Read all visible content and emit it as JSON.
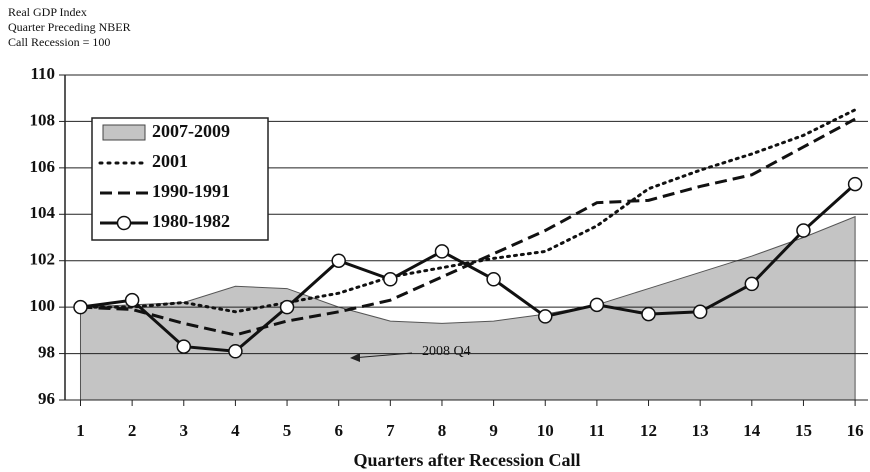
{
  "chart_data": {
    "type": "line",
    "title_lines": [
      "Real GDP Index",
      "Quarter Preceding NBER",
      "Call Recession = 100"
    ],
    "x_label": "Quarters after Recession Call",
    "annotation": "2008 Q4",
    "x": [
      1,
      2,
      3,
      4,
      5,
      6,
      7,
      8,
      9,
      10,
      11,
      12,
      13,
      14,
      15,
      16
    ],
    "xlim": [
      0.7,
      16.25
    ],
    "xticks": [
      1,
      2,
      3,
      4,
      5,
      6,
      7,
      8,
      9,
      10,
      11,
      12,
      13,
      14,
      15,
      16
    ],
    "ylim": [
      96,
      110
    ],
    "yticks": [
      96,
      98,
      100,
      102,
      104,
      106,
      108,
      110
    ],
    "grid": true,
    "series": [
      {
        "name": "2007-2009",
        "style": "area",
        "color": "#c4c4c4",
        "values": [
          100,
          100.1,
          100.2,
          100.9,
          100.8,
          100,
          99.4,
          99.3,
          99.4,
          99.7,
          100.1,
          100.8,
          101.5,
          102.2,
          103,
          103.9
        ]
      },
      {
        "name": "2001",
        "style": "dotted",
        "color": "#111111",
        "values": [
          100,
          100,
          100.2,
          99.8,
          100.2,
          100.6,
          101.3,
          101.7,
          102.1,
          102.4,
          103.5,
          105.1,
          105.9,
          106.6,
          107.4,
          108.5
        ]
      },
      {
        "name": "1990-1991",
        "style": "dashed",
        "color": "#111111",
        "values": [
          100,
          99.9,
          99.3,
          98.8,
          99.4,
          99.8,
          100.3,
          101.3,
          102.3,
          103.3,
          104.5,
          104.6,
          105.2,
          105.7,
          106.9,
          108.1
        ]
      },
      {
        "name": "1980-1982",
        "style": "markers",
        "color": "#111111",
        "values": [
          100,
          100.3,
          98.3,
          98.1,
          100,
          102,
          101.2,
          102.4,
          101.2,
          99.6,
          100.1,
          99.7,
          99.8,
          101,
          103.3,
          105.3
        ]
      }
    ]
  }
}
